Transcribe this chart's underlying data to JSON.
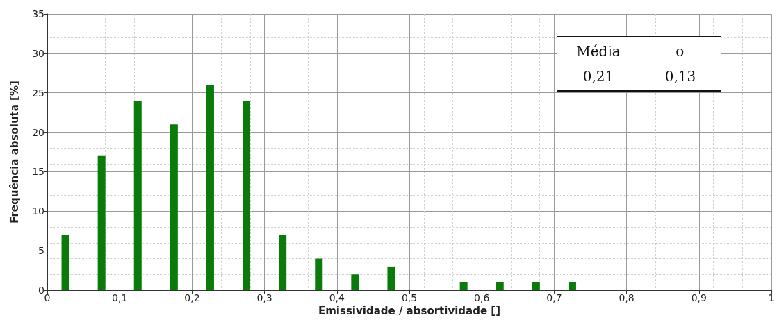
{
  "chart_data": {
    "type": "bar",
    "xlabel": "Emissividade / absortividade []",
    "ylabel": "Frequência absoluta [%]",
    "x": [
      0.025,
      0.075,
      0.125,
      0.175,
      0.225,
      0.275,
      0.325,
      0.375,
      0.425,
      0.475,
      0.575,
      0.625,
      0.675,
      0.725
    ],
    "values": [
      7,
      17,
      24,
      21,
      26,
      24,
      7,
      4,
      2,
      3,
      1,
      1,
      1,
      1
    ],
    "color": "#0a7a0a",
    "xlim": [
      0,
      1
    ],
    "xticks": [
      0,
      {
        "value": 0.1,
        "label": "0,1"
      },
      {
        "value": 0.2,
        "label": "0,2"
      },
      {
        "value": 0.3,
        "label": "0,3"
      },
      {
        "value": 0.4,
        "label": "0,4"
      },
      {
        "value": 0.5,
        "label": "0,5"
      },
      {
        "value": 0.6,
        "label": "0,6"
      },
      {
        "value": 0.7,
        "label": "0,7"
      },
      {
        "value": 0.8,
        "label": "0,8"
      },
      {
        "value": 0.9,
        "label": "0,9"
      },
      1
    ],
    "ylim": [
      0,
      35
    ],
    "yticks": [
      0,
      5,
      10,
      15,
      20,
      25,
      30,
      35
    ],
    "grid": true,
    "annotations": [
      "Média",
      "σ",
      "0,21",
      "0,13"
    ]
  }
}
